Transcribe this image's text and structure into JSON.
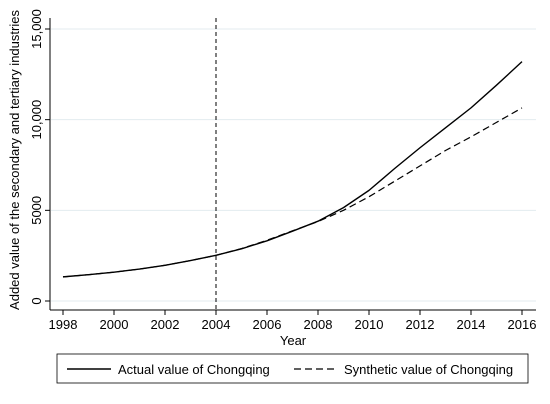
{
  "chart_data": {
    "type": "line",
    "title": "",
    "xlabel": "Year",
    "ylabel": "Added value of the secondary and tertiary industries",
    "xlim": [
      1998,
      2016
    ],
    "ylim": [
      0,
      15000
    ],
    "x_ticks": [
      1998,
      2000,
      2002,
      2004,
      2006,
      2008,
      2010,
      2012,
      2014,
      2016
    ],
    "x_tick_labels": [
      "1998",
      "2000",
      "2002",
      "2004",
      "2006",
      "2008",
      "2010",
      "2012",
      "2014",
      "2016"
    ],
    "y_ticks": [
      0,
      5000,
      10000,
      15000
    ],
    "y_tick_labels": [
      "0",
      "5000",
      "10,000",
      "15,000"
    ],
    "grid": "horizontal",
    "legend_placement": "bottom",
    "reference_line": {
      "x": 2004,
      "style": "dashed"
    },
    "x": [
      1998,
      1999,
      2000,
      2001,
      2002,
      2003,
      2004,
      2005,
      2006,
      2007,
      2008,
      2009,
      2010,
      2011,
      2012,
      2013,
      2014,
      2015,
      2016
    ],
    "series": [
      {
        "name": "Actual value of Chongqing",
        "style": "solid",
        "values": [
          1330,
          1450,
          1590,
          1760,
          1970,
          2230,
          2520,
          2880,
          3320,
          3850,
          4400,
          5150,
          6100,
          7300,
          8450,
          9550,
          10650,
          11900,
          13200
        ]
      },
      {
        "name": "Synthetic value of Chongqing",
        "style": "dashed",
        "values": [
          1330,
          1450,
          1590,
          1760,
          1970,
          2230,
          2520,
          2890,
          3350,
          3870,
          4380,
          5000,
          5750,
          6600,
          7450,
          8300,
          9050,
          9850,
          10650
        ]
      }
    ]
  }
}
